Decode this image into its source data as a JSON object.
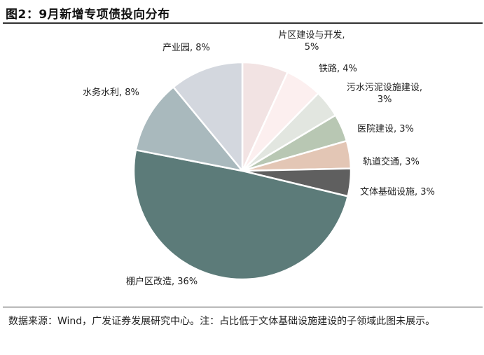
{
  "figure": {
    "title": "图2：9月新增专项债投向分布",
    "source": "数据来源：Wind，广发证券发展研究中心。注：占比低于文体基础设施建设的子领域此图未展示。"
  },
  "chart_data": {
    "type": "pie",
    "title": "图2：9月新增专项债投向分布",
    "labels_format": "name, percent",
    "start_angle_deg": 0,
    "direction": "clockwise-from-12-oclock",
    "slices": [
      {
        "name": "片区建设与开发",
        "label_lines": [
          "片区建设与开发,",
          "5%"
        ],
        "value": 5,
        "color": "#f2e3e3"
      },
      {
        "name": "铁路",
        "label_lines": [
          "铁路, 4%"
        ],
        "value": 4,
        "color": "#fcefef"
      },
      {
        "name": "污水污泥设施建设",
        "label_lines": [
          "污水污泥设施建设,",
          "3%"
        ],
        "value": 3,
        "color": "#e2e6e0"
      },
      {
        "name": "医院建设",
        "label_lines": [
          "医院建设, 3%"
        ],
        "value": 3,
        "color": "#b8c7b3"
      },
      {
        "name": "轨道交通",
        "label_lines": [
          "轨道交通, 3%"
        ],
        "value": 3,
        "color": "#e3c6b5"
      },
      {
        "name": "文体基础设施",
        "label_lines": [
          "文体基础设施, 3%"
        ],
        "value": 3,
        "color": "#5f5f5f"
      },
      {
        "name": "棚户区改造",
        "label_lines": [
          "棚户区改造, 36%"
        ],
        "value": 36,
        "color": "#5c7b79"
      },
      {
        "name": "水务水利",
        "label_lines": [
          "水务水利, 8%"
        ],
        "value": 8,
        "color": "#a9b9bd"
      },
      {
        "name": "产业园",
        "label_lines": [
          "产业园, 8%"
        ],
        "value": 8,
        "color": "#d3d7de"
      }
    ]
  }
}
